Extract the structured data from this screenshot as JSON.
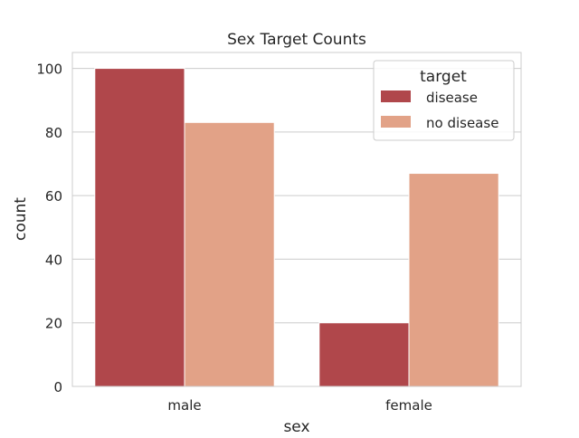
{
  "chart_data": {
    "type": "bar",
    "title": "Sex Target Counts",
    "xlabel": "sex",
    "ylabel": "count",
    "categories": [
      "male",
      "female"
    ],
    "ylim": [
      0,
      105
    ],
    "yticks": [
      0,
      20,
      40,
      60,
      80,
      100
    ],
    "grid": true,
    "grid_axis": "y",
    "legend": {
      "title": "target",
      "placement": "top-right"
    },
    "series": [
      {
        "name": "disease",
        "values": [
          100,
          20
        ],
        "color": "#b0474b"
      },
      {
        "name": "no disease",
        "values": [
          83,
          67
        ],
        "color": "#e2a287"
      }
    ]
  }
}
